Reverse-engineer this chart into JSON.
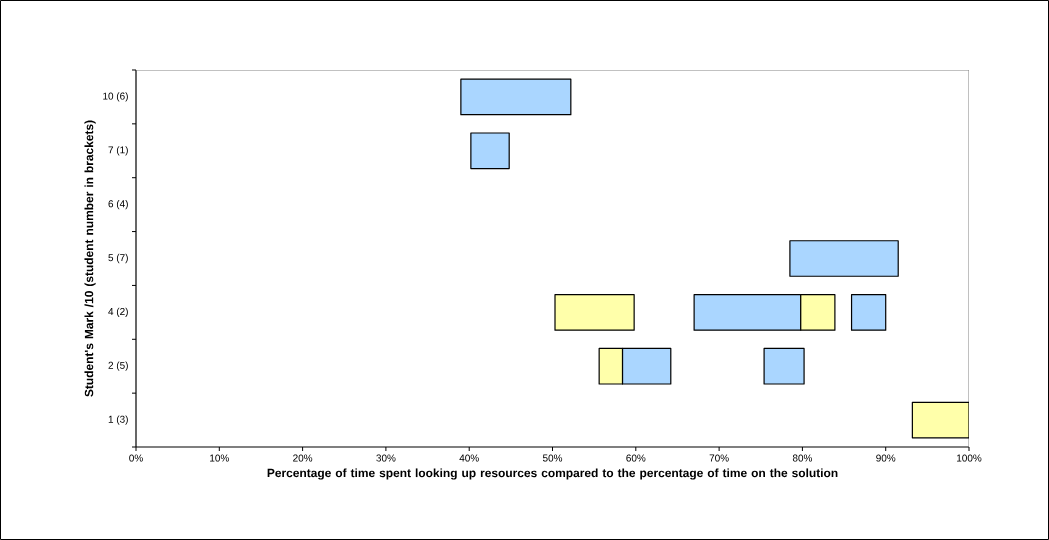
{
  "chart_data": {
    "type": "bar",
    "orientation": "horizontal",
    "xlabel": "Percentage of time spent looking up resources compared to the percentage of time on the solution",
    "ylabel": "Student's Mark /10 (student number in brackets)",
    "categories": [
      "10 (6)",
      "7 (1)",
      "6 (4)",
      "5 (7)",
      "4 (2)",
      "2 (5)",
      "1 (3)"
    ],
    "xlim": [
      0,
      100
    ],
    "xticks": [
      {
        "value": 0,
        "label": "0%"
      },
      {
        "value": 10,
        "label": "10%"
      },
      {
        "value": 20,
        "label": "20%"
      },
      {
        "value": 30,
        "label": "30%"
      },
      {
        "value": 40,
        "label": "40%"
      },
      {
        "value": 50,
        "label": "50%"
      },
      {
        "value": 60,
        "label": "60%"
      },
      {
        "value": 70,
        "label": "70%"
      },
      {
        "value": 80,
        "label": "80%"
      },
      {
        "value": 90,
        "label": "90%"
      },
      {
        "value": 100,
        "label": "100%"
      }
    ],
    "series": [
      {
        "color": "#aad6ff",
        "base": [
          39.0,
          40.2,
          null,
          78.5,
          67.0,
          58.4,
          null
        ],
        "values": [
          13.2,
          4.6,
          null,
          13.0,
          12.8,
          5.8,
          null
        ]
      },
      {
        "color": "#aad6ff",
        "base": [
          null,
          null,
          null,
          null,
          85.9,
          75.4,
          null
        ],
        "values": [
          null,
          null,
          null,
          null,
          4.1,
          4.8,
          null
        ]
      },
      {
        "color": "#ffffaa",
        "base": [
          null,
          null,
          null,
          null,
          50.3,
          55.6,
          93.2
        ],
        "values": [
          null,
          null,
          null,
          null,
          9.5,
          2.8,
          6.8
        ]
      },
      {
        "color": "#ffffaa",
        "base": [
          null,
          null,
          null,
          null,
          79.8,
          null,
          null
        ],
        "values": [
          null,
          null,
          null,
          null,
          4.1,
          null,
          null
        ]
      }
    ]
  }
}
